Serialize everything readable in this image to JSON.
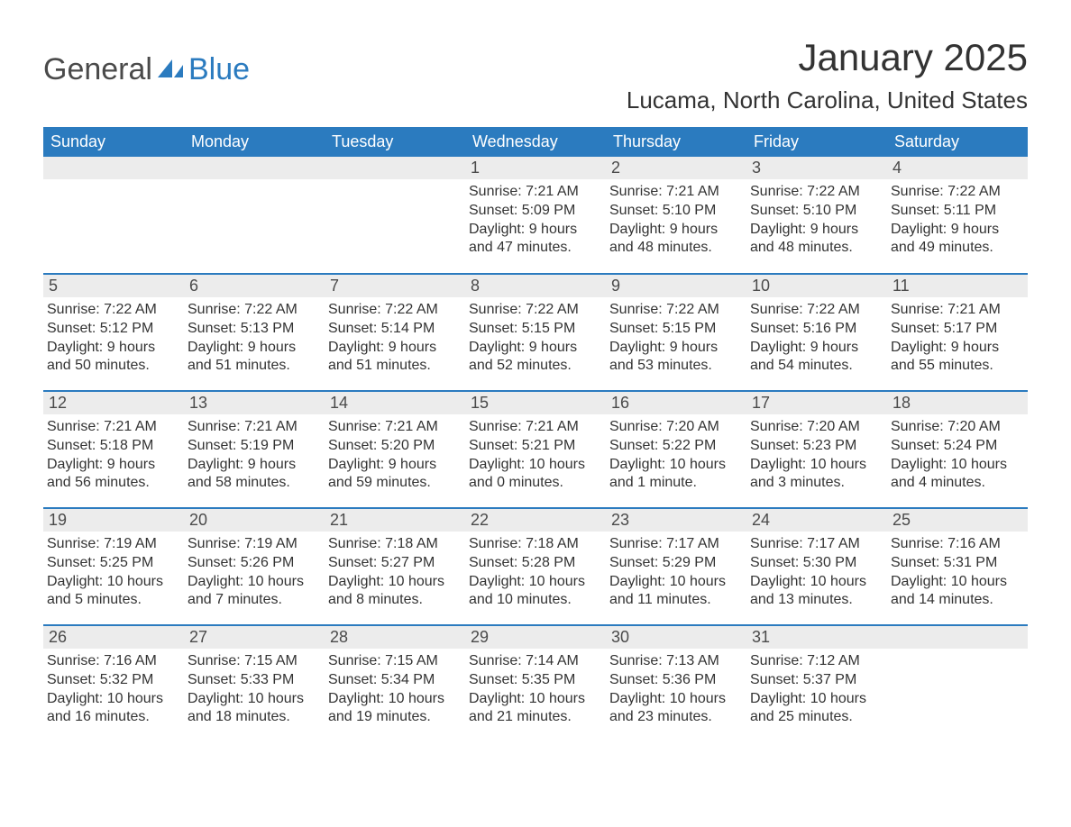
{
  "logo": {
    "text1": "General",
    "text2": "Blue",
    "sail_color": "#2b7bbf",
    "text_color": "#4a4a4a"
  },
  "title": "January 2025",
  "location": "Lucama, North Carolina, United States",
  "style": {
    "header_bg": "#2b7bbf",
    "header_text": "#ffffff",
    "daynum_bg": "#ececec",
    "row_border": "#2b7bbf",
    "body_text": "#333333",
    "font_family": "Arial",
    "title_fontsize": 42,
    "location_fontsize": 26,
    "header_fontsize": 18,
    "cell_fontsize": 16
  },
  "weekdays": [
    "Sunday",
    "Monday",
    "Tuesday",
    "Wednesday",
    "Thursday",
    "Friday",
    "Saturday"
  ],
  "weeks": [
    [
      null,
      null,
      null,
      {
        "n": "1",
        "sr": "Sunrise: 7:21 AM",
        "ss": "Sunset: 5:09 PM",
        "d1": "Daylight: 9 hours",
        "d2": "and 47 minutes."
      },
      {
        "n": "2",
        "sr": "Sunrise: 7:21 AM",
        "ss": "Sunset: 5:10 PM",
        "d1": "Daylight: 9 hours",
        "d2": "and 48 minutes."
      },
      {
        "n": "3",
        "sr": "Sunrise: 7:22 AM",
        "ss": "Sunset: 5:10 PM",
        "d1": "Daylight: 9 hours",
        "d2": "and 48 minutes."
      },
      {
        "n": "4",
        "sr": "Sunrise: 7:22 AM",
        "ss": "Sunset: 5:11 PM",
        "d1": "Daylight: 9 hours",
        "d2": "and 49 minutes."
      }
    ],
    [
      {
        "n": "5",
        "sr": "Sunrise: 7:22 AM",
        "ss": "Sunset: 5:12 PM",
        "d1": "Daylight: 9 hours",
        "d2": "and 50 minutes."
      },
      {
        "n": "6",
        "sr": "Sunrise: 7:22 AM",
        "ss": "Sunset: 5:13 PM",
        "d1": "Daylight: 9 hours",
        "d2": "and 51 minutes."
      },
      {
        "n": "7",
        "sr": "Sunrise: 7:22 AM",
        "ss": "Sunset: 5:14 PM",
        "d1": "Daylight: 9 hours",
        "d2": "and 51 minutes."
      },
      {
        "n": "8",
        "sr": "Sunrise: 7:22 AM",
        "ss": "Sunset: 5:15 PM",
        "d1": "Daylight: 9 hours",
        "d2": "and 52 minutes."
      },
      {
        "n": "9",
        "sr": "Sunrise: 7:22 AM",
        "ss": "Sunset: 5:15 PM",
        "d1": "Daylight: 9 hours",
        "d2": "and 53 minutes."
      },
      {
        "n": "10",
        "sr": "Sunrise: 7:22 AM",
        "ss": "Sunset: 5:16 PM",
        "d1": "Daylight: 9 hours",
        "d2": "and 54 minutes."
      },
      {
        "n": "11",
        "sr": "Sunrise: 7:21 AM",
        "ss": "Sunset: 5:17 PM",
        "d1": "Daylight: 9 hours",
        "d2": "and 55 minutes."
      }
    ],
    [
      {
        "n": "12",
        "sr": "Sunrise: 7:21 AM",
        "ss": "Sunset: 5:18 PM",
        "d1": "Daylight: 9 hours",
        "d2": "and 56 minutes."
      },
      {
        "n": "13",
        "sr": "Sunrise: 7:21 AM",
        "ss": "Sunset: 5:19 PM",
        "d1": "Daylight: 9 hours",
        "d2": "and 58 minutes."
      },
      {
        "n": "14",
        "sr": "Sunrise: 7:21 AM",
        "ss": "Sunset: 5:20 PM",
        "d1": "Daylight: 9 hours",
        "d2": "and 59 minutes."
      },
      {
        "n": "15",
        "sr": "Sunrise: 7:21 AM",
        "ss": "Sunset: 5:21 PM",
        "d1": "Daylight: 10 hours",
        "d2": "and 0 minutes."
      },
      {
        "n": "16",
        "sr": "Sunrise: 7:20 AM",
        "ss": "Sunset: 5:22 PM",
        "d1": "Daylight: 10 hours",
        "d2": "and 1 minute."
      },
      {
        "n": "17",
        "sr": "Sunrise: 7:20 AM",
        "ss": "Sunset: 5:23 PM",
        "d1": "Daylight: 10 hours",
        "d2": "and 3 minutes."
      },
      {
        "n": "18",
        "sr": "Sunrise: 7:20 AM",
        "ss": "Sunset: 5:24 PM",
        "d1": "Daylight: 10 hours",
        "d2": "and 4 minutes."
      }
    ],
    [
      {
        "n": "19",
        "sr": "Sunrise: 7:19 AM",
        "ss": "Sunset: 5:25 PM",
        "d1": "Daylight: 10 hours",
        "d2": "and 5 minutes."
      },
      {
        "n": "20",
        "sr": "Sunrise: 7:19 AM",
        "ss": "Sunset: 5:26 PM",
        "d1": "Daylight: 10 hours",
        "d2": "and 7 minutes."
      },
      {
        "n": "21",
        "sr": "Sunrise: 7:18 AM",
        "ss": "Sunset: 5:27 PM",
        "d1": "Daylight: 10 hours",
        "d2": "and 8 minutes."
      },
      {
        "n": "22",
        "sr": "Sunrise: 7:18 AM",
        "ss": "Sunset: 5:28 PM",
        "d1": "Daylight: 10 hours",
        "d2": "and 10 minutes."
      },
      {
        "n": "23",
        "sr": "Sunrise: 7:17 AM",
        "ss": "Sunset: 5:29 PM",
        "d1": "Daylight: 10 hours",
        "d2": "and 11 minutes."
      },
      {
        "n": "24",
        "sr": "Sunrise: 7:17 AM",
        "ss": "Sunset: 5:30 PM",
        "d1": "Daylight: 10 hours",
        "d2": "and 13 minutes."
      },
      {
        "n": "25",
        "sr": "Sunrise: 7:16 AM",
        "ss": "Sunset: 5:31 PM",
        "d1": "Daylight: 10 hours",
        "d2": "and 14 minutes."
      }
    ],
    [
      {
        "n": "26",
        "sr": "Sunrise: 7:16 AM",
        "ss": "Sunset: 5:32 PM",
        "d1": "Daylight: 10 hours",
        "d2": "and 16 minutes."
      },
      {
        "n": "27",
        "sr": "Sunrise: 7:15 AM",
        "ss": "Sunset: 5:33 PM",
        "d1": "Daylight: 10 hours",
        "d2": "and 18 minutes."
      },
      {
        "n": "28",
        "sr": "Sunrise: 7:15 AM",
        "ss": "Sunset: 5:34 PM",
        "d1": "Daylight: 10 hours",
        "d2": "and 19 minutes."
      },
      {
        "n": "29",
        "sr": "Sunrise: 7:14 AM",
        "ss": "Sunset: 5:35 PM",
        "d1": "Daylight: 10 hours",
        "d2": "and 21 minutes."
      },
      {
        "n": "30",
        "sr": "Sunrise: 7:13 AM",
        "ss": "Sunset: 5:36 PM",
        "d1": "Daylight: 10 hours",
        "d2": "and 23 minutes."
      },
      {
        "n": "31",
        "sr": "Sunrise: 7:12 AM",
        "ss": "Sunset: 5:37 PM",
        "d1": "Daylight: 10 hours",
        "d2": "and 25 minutes."
      },
      null
    ]
  ]
}
